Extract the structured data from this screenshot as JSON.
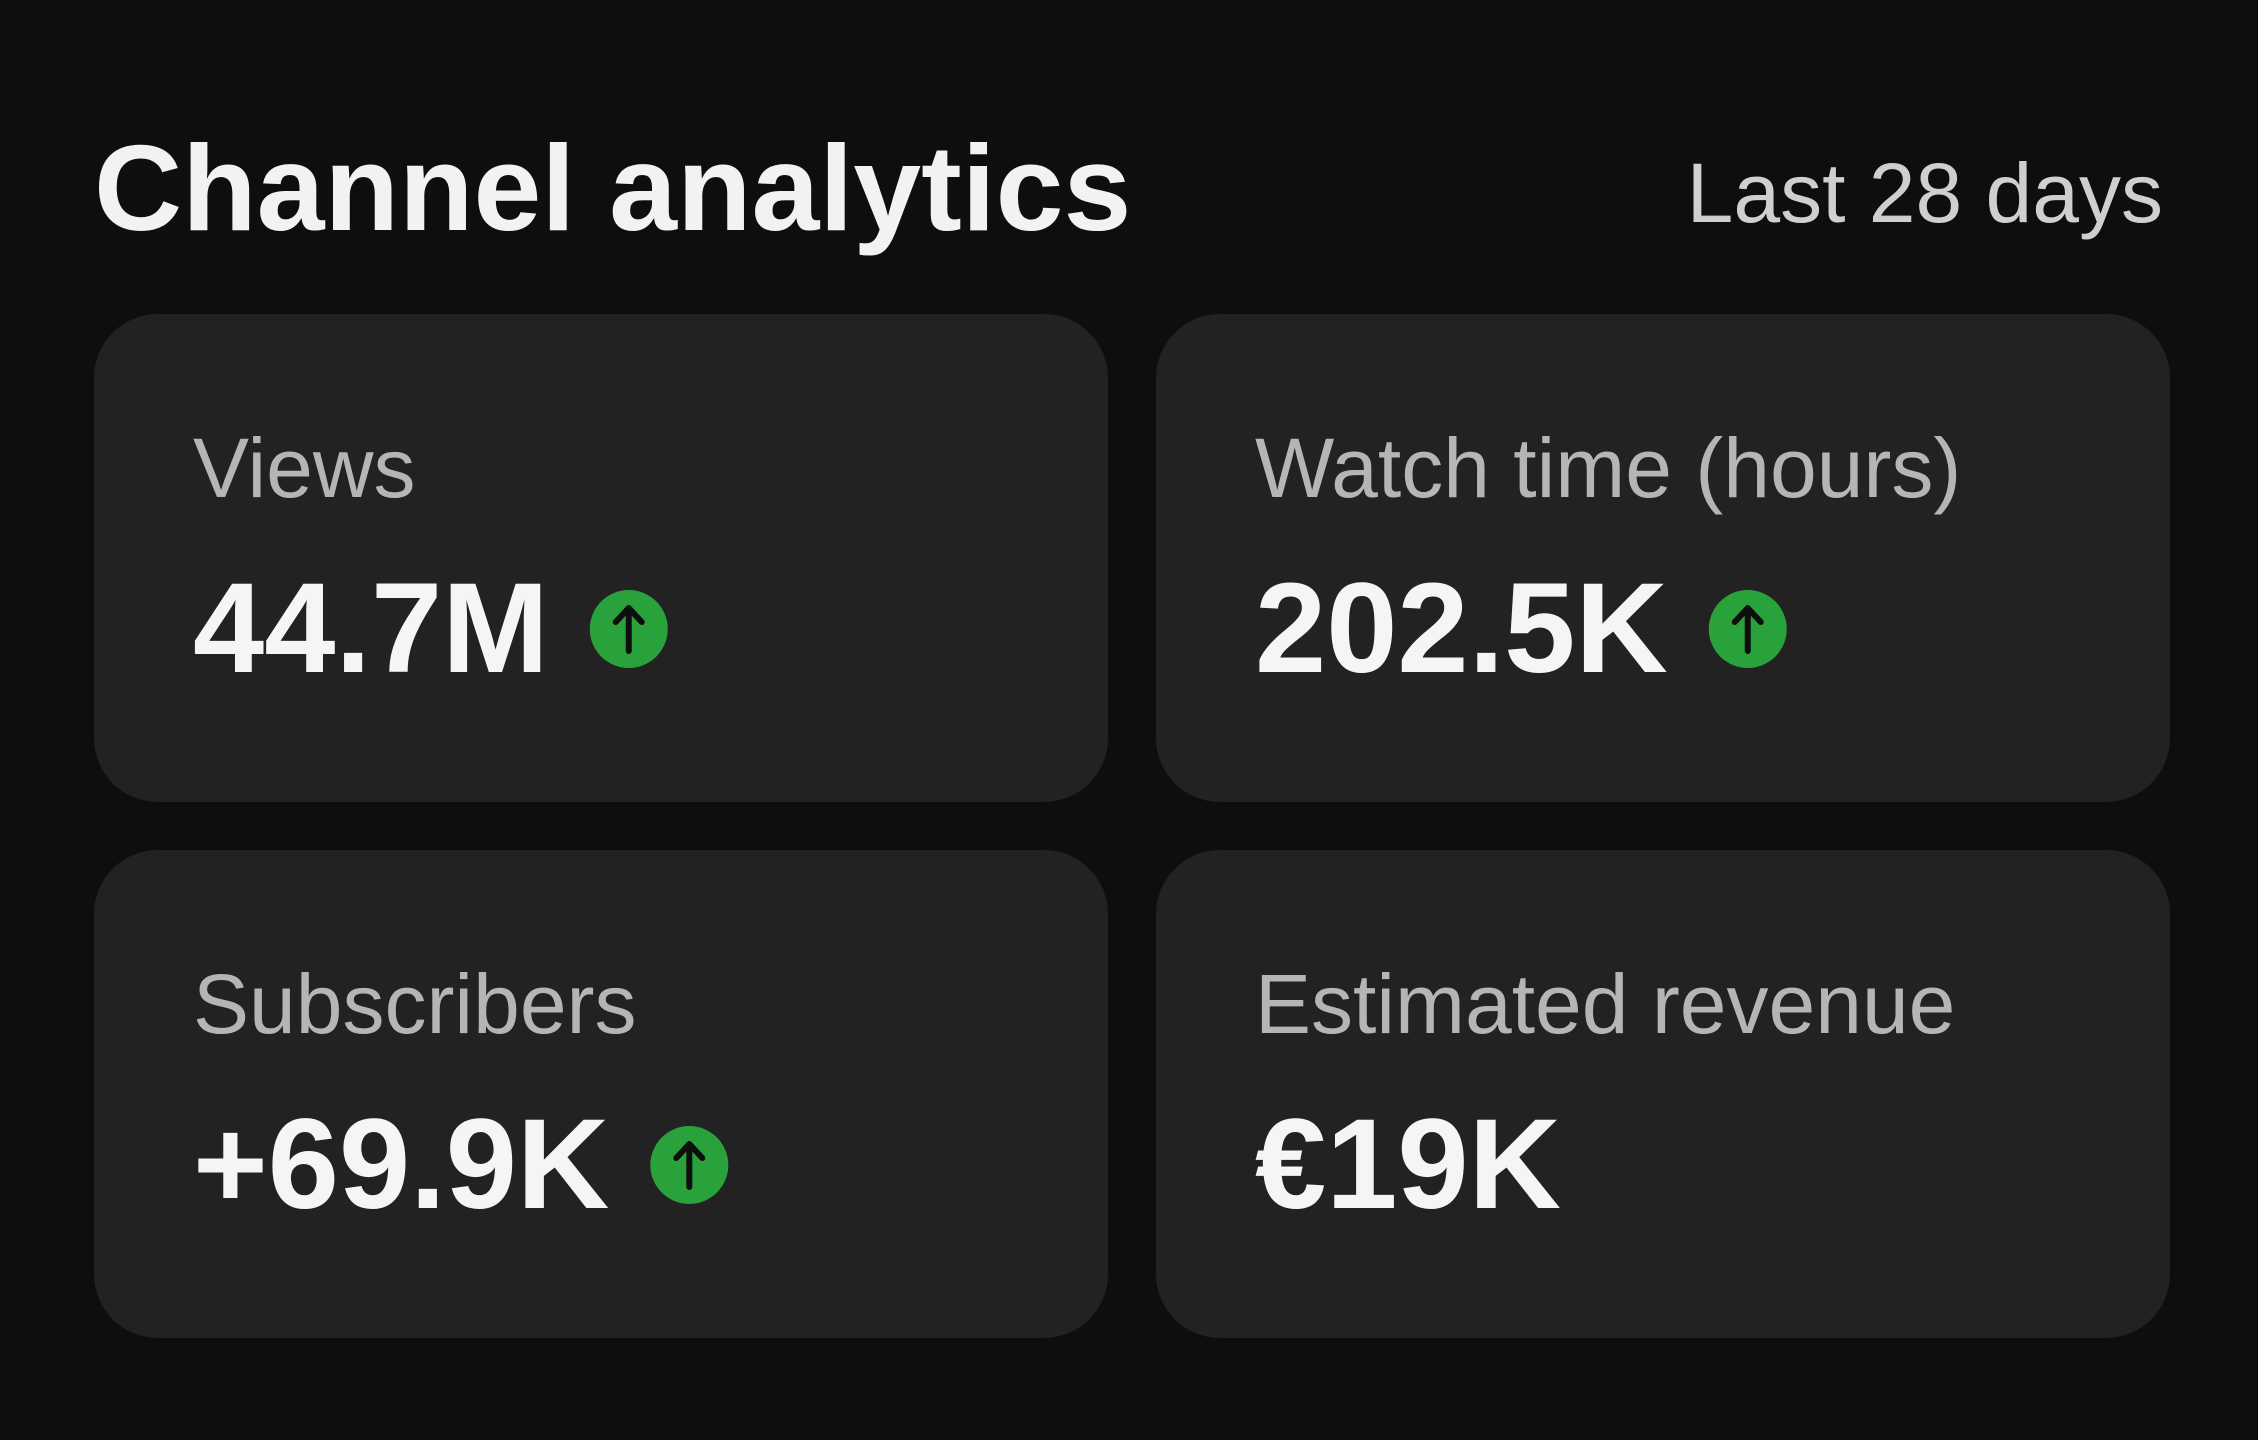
{
  "header": {
    "title": "Channel analytics",
    "period": "Last 28 days"
  },
  "cards": [
    {
      "label": "Views",
      "value": "44.7M",
      "trend_up": true
    },
    {
      "label": "Watch time (hours)",
      "value": "202.5K",
      "trend_up": true
    },
    {
      "label": "Subscribers",
      "value": "+69.9K",
      "trend_up": true
    },
    {
      "label": "Estimated revenue",
      "value": "€19K",
      "trend_up": false
    }
  ]
}
